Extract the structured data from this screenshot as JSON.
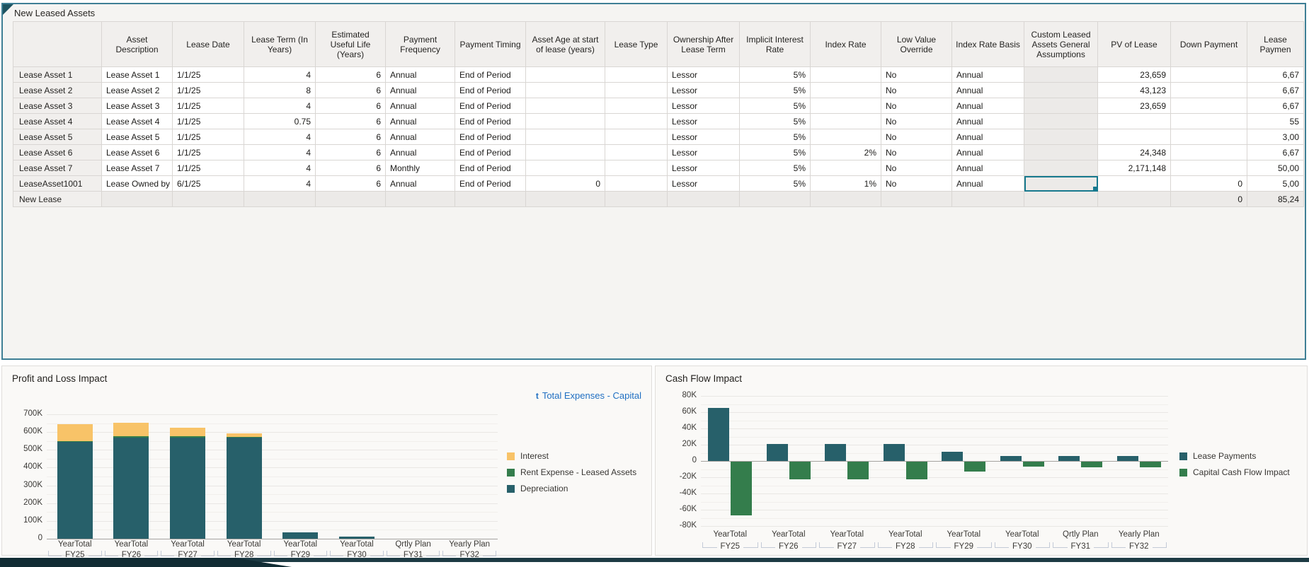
{
  "page": {
    "title": "New Leased Assets"
  },
  "table": {
    "columns": [
      {
        "label": "Asset Description",
        "align": "left"
      },
      {
        "label": "Lease Date",
        "align": "left"
      },
      {
        "label": "Lease Term (In Years)",
        "align": "right"
      },
      {
        "label": "Estimated Useful Life (Years)",
        "align": "right"
      },
      {
        "label": "Payment Frequency",
        "align": "left"
      },
      {
        "label": "Payment Timing",
        "align": "left"
      },
      {
        "label": "Asset Age at start of lease (years)",
        "align": "right"
      },
      {
        "label": "Lease Type",
        "align": "left"
      },
      {
        "label": "Ownership After Lease Term",
        "align": "left"
      },
      {
        "label": "Implicit Interest Rate",
        "align": "right"
      },
      {
        "label": "Index Rate",
        "align": "right"
      },
      {
        "label": "Low Value Override",
        "align": "left"
      },
      {
        "label": "Index Rate Basis",
        "align": "left"
      },
      {
        "label": "Custom Leased Assets General Assumptions",
        "align": "left"
      },
      {
        "label": "PV of Lease",
        "align": "right"
      },
      {
        "label": "Down Payment",
        "align": "right"
      },
      {
        "label": "Lease Paymen",
        "align": "right"
      }
    ],
    "readonly_columns": [
      13
    ],
    "selected_cell": {
      "row": 7,
      "col": 13
    },
    "rows": [
      {
        "header": "Lease Asset 1",
        "grey": false,
        "cells": [
          "Lease Asset 1",
          "1/1/25",
          "4",
          "6",
          "Annual",
          "End of Period",
          "",
          "",
          "Lessor",
          "5%",
          "",
          "No",
          "Annual",
          "",
          "23,659",
          "",
          "6,67"
        ]
      },
      {
        "header": "Lease Asset 2",
        "grey": false,
        "cells": [
          "Lease Asset 2",
          "1/1/25",
          "8",
          "6",
          "Annual",
          "End of Period",
          "",
          "",
          "Lessor",
          "5%",
          "",
          "No",
          "Annual",
          "",
          "43,123",
          "",
          "6,67"
        ]
      },
      {
        "header": "Lease Asset 3",
        "grey": false,
        "cells": [
          "Lease Asset 3",
          "1/1/25",
          "4",
          "6",
          "Annual",
          "End of Period",
          "",
          "",
          "Lessor",
          "5%",
          "",
          "No",
          "Annual",
          "",
          "23,659",
          "",
          "6,67"
        ]
      },
      {
        "header": "Lease Asset 4",
        "grey": false,
        "cells": [
          "Lease Asset 4",
          "1/1/25",
          "0.75",
          "6",
          "Annual",
          "End of Period",
          "",
          "",
          "Lessor",
          "5%",
          "",
          "No",
          "Annual",
          "",
          "",
          "",
          "55"
        ]
      },
      {
        "header": "Lease Asset 5",
        "grey": false,
        "cells": [
          "Lease Asset 5",
          "1/1/25",
          "4",
          "6",
          "Annual",
          "End of Period",
          "",
          "",
          "Lessor",
          "5%",
          "",
          "No",
          "Annual",
          "",
          "",
          "",
          "3,00"
        ]
      },
      {
        "header": "Lease Asset 6",
        "grey": false,
        "cells": [
          "Lease Asset 6",
          "1/1/25",
          "4",
          "6",
          "Annual",
          "End of Period",
          "",
          "",
          "Lessor",
          "5%",
          "2%",
          "No",
          "Annual",
          "",
          "24,348",
          "",
          "6,67"
        ]
      },
      {
        "header": "Lease Asset 7",
        "grey": false,
        "cells": [
          "Lease Asset 7",
          "1/1/25",
          "4",
          "6",
          "Monthly",
          "End of Period",
          "",
          "",
          "Lessor",
          "5%",
          "",
          "No",
          "Annual",
          "",
          "2,171,148",
          "",
          "50,00"
        ]
      },
      {
        "header": "LeaseAsset1001",
        "grey": false,
        "cells": [
          "Lease Owned by",
          "6/1/25",
          "4",
          "6",
          "Annual",
          "End of Period",
          "0",
          "",
          "Lessor",
          "5%",
          "1%",
          "No",
          "Annual",
          "",
          "",
          "0",
          "5,00"
        ]
      },
      {
        "header": "New Lease",
        "grey": true,
        "cells": [
          "",
          "",
          "",
          "",
          "",
          "",
          "",
          "",
          "",
          "",
          "",
          "",
          "",
          "",
          "",
          "0",
          "85,24"
        ]
      }
    ]
  },
  "charts": {
    "pnl": {
      "title": "Profit and Loss Impact",
      "link_label": "Total Expenses - Capital",
      "link_icon": "t"
    },
    "cash": {
      "title": "Cash Flow Impact"
    }
  },
  "chart_data": [
    {
      "type": "bar",
      "stacked": true,
      "title": "Profit and Loss Impact",
      "categories": [
        "FY25",
        "FY26",
        "FY27",
        "FY28",
        "FY29",
        "FY30",
        "FY31",
        "FY32"
      ],
      "category_periods": [
        "YearTotal",
        "YearTotal",
        "YearTotal",
        "YearTotal",
        "YearTotal",
        "YearTotal",
        "Qrtly Plan",
        "Yearly Plan"
      ],
      "series": [
        {
          "name": "Interest",
          "color": "#F8C368",
          "values": [
            97000,
            78000,
            50000,
            20000,
            0,
            0,
            0,
            0
          ]
        },
        {
          "name": "Rent Expense - Leased Assets",
          "color": "#347D4C",
          "values": [
            4000,
            5000,
            5000,
            4000,
            0,
            0,
            0,
            0
          ]
        },
        {
          "name": "Depreciation",
          "color": "#27606A",
          "values": [
            545000,
            570000,
            570000,
            567000,
            35000,
            10000,
            0,
            0
          ]
        }
      ],
      "ylim": [
        0,
        700000
      ],
      "yticks": [
        "0",
        "100K",
        "200K",
        "300K",
        "400K",
        "500K",
        "600K",
        "700K"
      ],
      "legend_position": "right",
      "grid": true
    },
    {
      "type": "bar",
      "stacked": false,
      "title": "Cash Flow Impact",
      "categories": [
        "FY25",
        "FY26",
        "FY27",
        "FY28",
        "FY29",
        "FY30",
        "FY31",
        "FY32"
      ],
      "category_periods": [
        "YearTotal",
        "YearTotal",
        "YearTotal",
        "YearTotal",
        "YearTotal",
        "YearTotal",
        "Qrtly Plan",
        "Yearly Plan"
      ],
      "series": [
        {
          "name": "Lease Payments",
          "color": "#27606A",
          "values": [
            65000,
            21000,
            21000,
            21000,
            11000,
            6500,
            6500,
            6500
          ]
        },
        {
          "name": "Capital Cash Flow Impact",
          "color": "#347D4C",
          "values": [
            -66000,
            -21500,
            -21500,
            -21500,
            -12000,
            -6500,
            -7000,
            -7000
          ]
        }
      ],
      "ylim": [
        -80000,
        80000
      ],
      "yticks": [
        "-80K",
        "-60K",
        "-40K",
        "-20K",
        "0",
        "20K",
        "40K",
        "60K",
        "80K"
      ],
      "legend_position": "right",
      "grid": true
    }
  ]
}
